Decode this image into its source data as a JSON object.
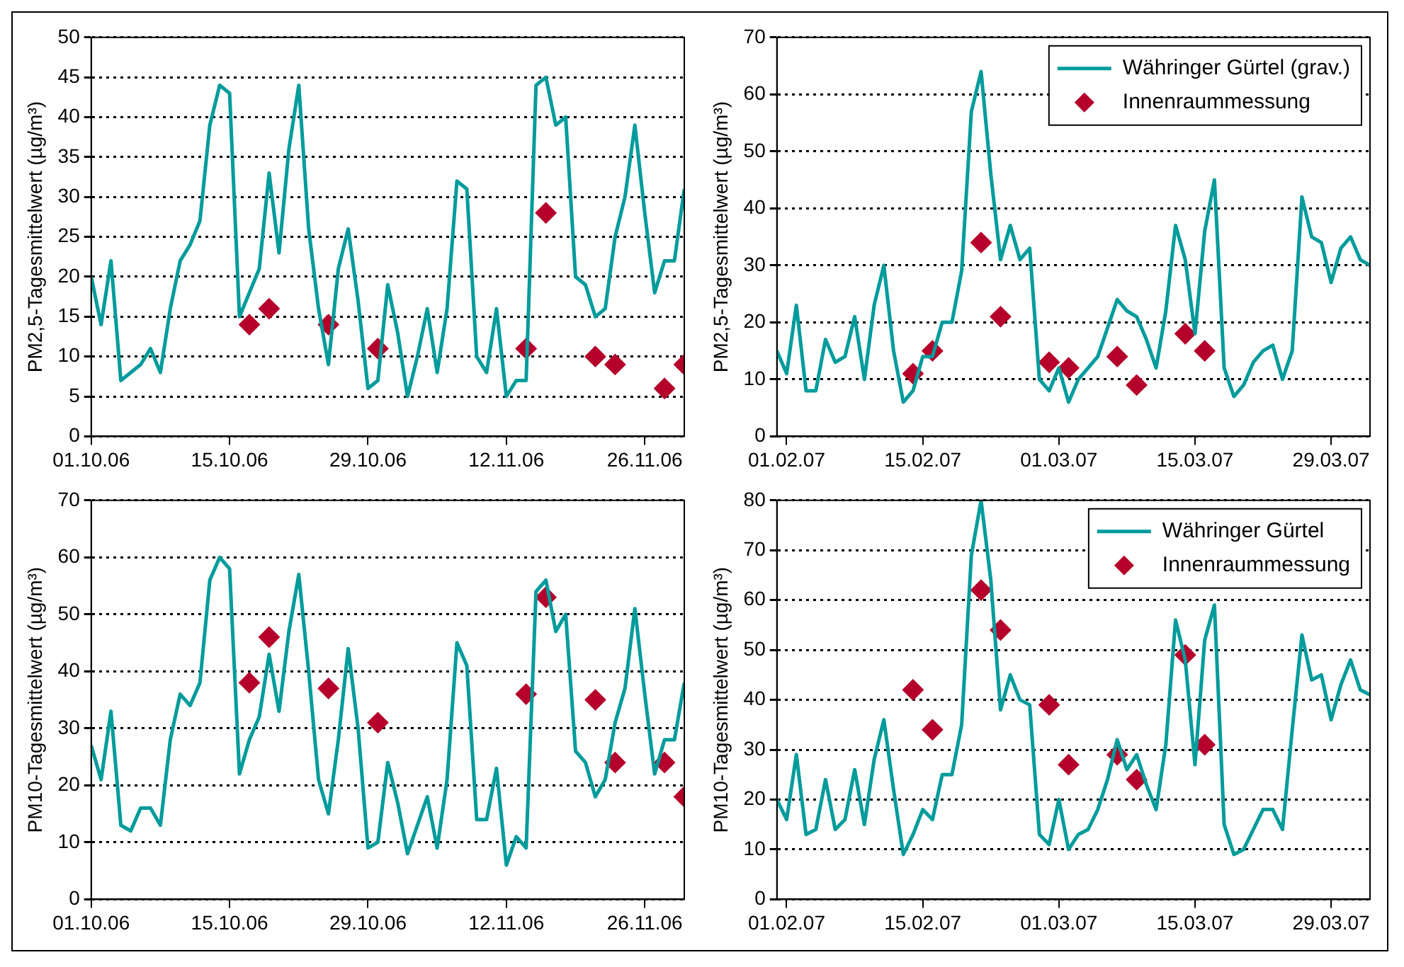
{
  "chart_data": [
    {
      "type": "line",
      "ylabel": "PM2,5-Tagesmittelwert (µg/m³)",
      "xlim": [
        "--10-01",
        "--11-30"
      ],
      "xticks": [
        {
          "value": "--10-01",
          "label": "01.10.06"
        },
        {
          "value": "--10-15",
          "label": "15.10.06"
        },
        {
          "value": "--10-29",
          "label": "29.10.06"
        },
        {
          "value": "--11-12",
          "label": "12.11.06"
        },
        {
          "value": "--11-26",
          "label": "26.11.06"
        }
      ],
      "ylim": [
        0,
        50
      ],
      "yticks": [
        0,
        5,
        10,
        15,
        20,
        25,
        30,
        35,
        40,
        45,
        50
      ],
      "grid": "y",
      "legend": false,
      "series": [
        {
          "type": "line",
          "color": "#009b9b",
          "marker": "none",
          "x": [
            "--10-01",
            "--10-02",
            "--10-03",
            "--10-04",
            "--10-05",
            "--10-06",
            "--10-07",
            "--10-08",
            "--10-09",
            "--10-10",
            "--10-11",
            "--10-12",
            "--10-13",
            "--10-14",
            "--10-15",
            "--10-16",
            "--10-17",
            "--10-18",
            "--10-19",
            "--10-20",
            "--10-21",
            "--10-22",
            "--10-23",
            "--10-24",
            "--10-25",
            "--10-26",
            "--10-27",
            "--10-28",
            "--10-29",
            "--10-30",
            "--10-31",
            "--11-01",
            "--11-02",
            "--11-03",
            "--11-04",
            "--11-05",
            "--11-06",
            "--11-07",
            "--11-08",
            "--11-09",
            "--11-10",
            "--11-11",
            "--11-12",
            "--11-13",
            "--11-14",
            "--11-15",
            "--11-16",
            "--11-17",
            "--11-18",
            "--11-19",
            "--11-20",
            "--11-21",
            "--11-22",
            "--11-23",
            "--11-24",
            "--11-25",
            "--11-26",
            "--11-27",
            "--11-28",
            "--11-29",
            "--11-30"
          ],
          "values": [
            20,
            14,
            22,
            7,
            8,
            9,
            11,
            8,
            16,
            22,
            24,
            27,
            39,
            44,
            43,
            15,
            18,
            21,
            33,
            23,
            36,
            44,
            26,
            16,
            9,
            21,
            26,
            17,
            6,
            7,
            19,
            13,
            5,
            10,
            16,
            8,
            16,
            32,
            31,
            10,
            8,
            16,
            5,
            7,
            7,
            44,
            45,
            39,
            40,
            20,
            19,
            15,
            16,
            25,
            30,
            39,
            28,
            18,
            22,
            22,
            31
          ]
        },
        {
          "type": "scatter",
          "color": "#b5002b",
          "marker": "diamond",
          "x": [
            "--10-17",
            "--10-19",
            "--10-25",
            "--10-30",
            "--11-14",
            "--11-16",
            "--11-21",
            "--11-23",
            "--11-28",
            "--11-30"
          ],
          "values": [
            14,
            16,
            14,
            11,
            11,
            28,
            10,
            9,
            6,
            9
          ]
        }
      ]
    },
    {
      "type": "line",
      "ylabel": "PM2,5-Tagesmittelwert (µg/m³)",
      "xlim": [
        "--01-31",
        "--04-02"
      ],
      "xticks": [
        {
          "value": "--02-01",
          "label": "01.02.07"
        },
        {
          "value": "--02-15",
          "label": "15.02.07"
        },
        {
          "value": "--03-01",
          "label": "01.03.07"
        },
        {
          "value": "--03-15",
          "label": "15.03.07"
        },
        {
          "value": "--03-29",
          "label": "29.03.07"
        }
      ],
      "ylim": [
        0,
        70
      ],
      "yticks": [
        0,
        10,
        20,
        30,
        40,
        50,
        60,
        70
      ],
      "grid": "y",
      "legend": "top right",
      "series": [
        {
          "type": "line",
          "name": "Währinger Gürtel (grav.)",
          "color": "#009b9b",
          "marker": "none",
          "x": [
            "--01-31",
            "--02-01",
            "--02-02",
            "--02-03",
            "--02-04",
            "--02-05",
            "--02-06",
            "--02-07",
            "--02-08",
            "--02-09",
            "--02-10",
            "--02-11",
            "--02-12",
            "--02-13",
            "--02-14",
            "--02-15",
            "--02-16",
            "--02-17",
            "--02-18",
            "--02-19",
            "--02-20",
            "--02-21",
            "--02-22",
            "--02-23",
            "--02-24",
            "--02-25",
            "--02-26",
            "--02-27",
            "--02-28",
            "--03-01",
            "--03-02",
            "--03-03",
            "--03-04",
            "--03-05",
            "--03-06",
            "--03-07",
            "--03-08",
            "--03-09",
            "--03-10",
            "--03-11",
            "--03-12",
            "--03-13",
            "--03-14",
            "--03-15",
            "--03-16",
            "--03-17",
            "--03-18",
            "--03-19",
            "--03-20",
            "--03-21",
            "--03-22",
            "--03-23",
            "--03-24",
            "--03-25",
            "--03-26",
            "--03-27",
            "--03-28",
            "--03-29",
            "--03-30",
            "--03-31",
            "--04-01",
            "--04-02"
          ],
          "values": [
            15,
            11,
            23,
            8,
            8,
            17,
            13,
            14,
            21,
            10,
            23,
            30,
            15,
            6,
            8,
            14,
            14,
            20,
            20,
            29,
            57,
            64,
            46,
            31,
            37,
            31,
            33,
            10,
            8,
            12,
            6,
            10,
            12,
            14,
            19,
            24,
            22,
            21,
            17,
            12,
            22,
            37,
            31,
            18,
            36,
            45,
            12,
            7,
            9,
            13,
            15,
            16,
            10,
            15,
            42,
            35,
            34,
            27,
            33,
            35,
            31,
            30
          ]
        },
        {
          "type": "scatter",
          "name": "Innenraummessung",
          "color": "#b5002b",
          "marker": "diamond",
          "x": [
            "--02-14",
            "--02-16",
            "--02-21",
            "--02-23",
            "--02-28",
            "--03-02",
            "--03-07",
            "--03-09",
            "--03-14",
            "--03-16"
          ],
          "values": [
            11,
            15,
            34,
            21,
            13,
            12,
            14,
            9,
            18,
            15
          ]
        }
      ]
    },
    {
      "type": "line",
      "ylabel": "PM10-Tagesmittelwert (µg/m³)",
      "xlim": [
        "--10-01",
        "--11-30"
      ],
      "xticks": [
        {
          "value": "--10-01",
          "label": "01.10.06"
        },
        {
          "value": "--10-15",
          "label": "15.10.06"
        },
        {
          "value": "--10-29",
          "label": "29.10.06"
        },
        {
          "value": "--11-12",
          "label": "12.11.06"
        },
        {
          "value": "--11-26",
          "label": "26.11.06"
        }
      ],
      "ylim": [
        0,
        70
      ],
      "yticks": [
        0,
        10,
        20,
        30,
        40,
        50,
        60,
        70
      ],
      "grid": "y",
      "legend": false,
      "series": [
        {
          "type": "line",
          "color": "#009b9b",
          "marker": "none",
          "x": [
            "--10-01",
            "--10-02",
            "--10-03",
            "--10-04",
            "--10-05",
            "--10-06",
            "--10-07",
            "--10-08",
            "--10-09",
            "--10-10",
            "--10-11",
            "--10-12",
            "--10-13",
            "--10-14",
            "--10-15",
            "--10-16",
            "--10-17",
            "--10-18",
            "--10-19",
            "--10-20",
            "--10-21",
            "--10-22",
            "--10-23",
            "--10-24",
            "--10-25",
            "--10-26",
            "--10-27",
            "--10-28",
            "--10-29",
            "--10-30",
            "--10-31",
            "--11-01",
            "--11-02",
            "--11-03",
            "--11-04",
            "--11-05",
            "--11-06",
            "--11-07",
            "--11-08",
            "--11-09",
            "--11-10",
            "--11-11",
            "--11-12",
            "--11-13",
            "--11-14",
            "--11-15",
            "--11-16",
            "--11-17",
            "--11-18",
            "--11-19",
            "--11-20",
            "--11-21",
            "--11-22",
            "--11-23",
            "--11-24",
            "--11-25",
            "--11-26",
            "--11-27",
            "--11-28",
            "--11-29",
            "--11-30"
          ],
          "values": [
            27,
            21,
            33,
            13,
            12,
            16,
            16,
            13,
            28,
            36,
            34,
            38,
            56,
            60,
            58,
            22,
            28,
            32,
            43,
            33,
            47,
            57,
            40,
            21,
            15,
            28,
            44,
            30,
            9,
            10,
            24,
            17,
            8,
            13,
            18,
            9,
            21,
            45,
            41,
            14,
            14,
            23,
            6,
            11,
            9,
            54,
            56,
            47,
            50,
            26,
            24,
            18,
            21,
            31,
            37,
            51,
            36,
            22,
            28,
            28,
            38
          ]
        },
        {
          "type": "scatter",
          "color": "#b5002b",
          "marker": "diamond",
          "x": [
            "--10-17",
            "--10-19",
            "--10-25",
            "--10-30",
            "--11-14",
            "--11-16",
            "--11-21",
            "--11-23",
            "--11-28",
            "--11-30"
          ],
          "values": [
            38,
            46,
            37,
            31,
            36,
            53,
            35,
            24,
            24,
            18
          ]
        }
      ]
    },
    {
      "type": "line",
      "ylabel": "PM10-Tagesmittelwert (µg/m³)",
      "xlim": [
        "--01-31",
        "--04-02"
      ],
      "xticks": [
        {
          "value": "--02-01",
          "label": "01.02.07"
        },
        {
          "value": "--02-15",
          "label": "15.02.07"
        },
        {
          "value": "--03-01",
          "label": "01.03.07"
        },
        {
          "value": "--03-15",
          "label": "15.03.07"
        },
        {
          "value": "--03-29",
          "label": "29.03.07"
        }
      ],
      "ylim": [
        0,
        80
      ],
      "yticks": [
        0,
        10,
        20,
        30,
        40,
        50,
        60,
        70,
        80
      ],
      "grid": "y",
      "legend": "top right",
      "series": [
        {
          "type": "line",
          "name": "Währinger Gürtel",
          "color": "#009b9b",
          "marker": "none",
          "x": [
            "--01-31",
            "--02-01",
            "--02-02",
            "--02-03",
            "--02-04",
            "--02-05",
            "--02-06",
            "--02-07",
            "--02-08",
            "--02-09",
            "--02-10",
            "--02-11",
            "--02-12",
            "--02-13",
            "--02-14",
            "--02-15",
            "--02-16",
            "--02-17",
            "--02-18",
            "--02-19",
            "--02-20",
            "--02-21",
            "--02-22",
            "--02-23",
            "--02-24",
            "--02-25",
            "--02-26",
            "--02-27",
            "--02-28",
            "--03-01",
            "--03-02",
            "--03-03",
            "--03-04",
            "--03-05",
            "--03-06",
            "--03-07",
            "--03-08",
            "--03-09",
            "--03-10",
            "--03-11",
            "--03-12",
            "--03-13",
            "--03-14",
            "--03-15",
            "--03-16",
            "--03-17",
            "--03-18",
            "--03-19",
            "--03-20",
            "--03-21",
            "--03-22",
            "--03-23",
            "--03-24",
            "--03-25",
            "--03-26",
            "--03-27",
            "--03-28",
            "--03-29",
            "--03-30",
            "--03-31",
            "--04-01",
            "--04-02"
          ],
          "values": [
            20,
            16,
            29,
            13,
            14,
            24,
            14,
            16,
            26,
            15,
            28,
            36,
            22,
            9,
            13,
            18,
            16,
            25,
            25,
            35,
            69,
            80,
            64,
            38,
            45,
            40,
            39,
            13,
            11,
            20,
            10,
            13,
            14,
            18,
            24,
            32,
            26,
            29,
            23,
            18,
            31,
            56,
            48,
            27,
            52,
            59,
            15,
            9,
            10,
            14,
            18,
            18,
            14,
            34,
            53,
            44,
            45,
            36,
            43,
            48,
            42,
            41
          ]
        },
        {
          "type": "scatter",
          "name": "Innenraummessung",
          "color": "#b5002b",
          "marker": "diamond",
          "x": [
            "--02-14",
            "--02-16",
            "--02-21",
            "--02-23",
            "--02-28",
            "--03-02",
            "--03-07",
            "--03-09",
            "--03-14",
            "--03-16"
          ],
          "values": [
            42,
            34,
            62,
            54,
            39,
            27,
            29,
            24,
            49,
            31
          ]
        }
      ]
    }
  ]
}
